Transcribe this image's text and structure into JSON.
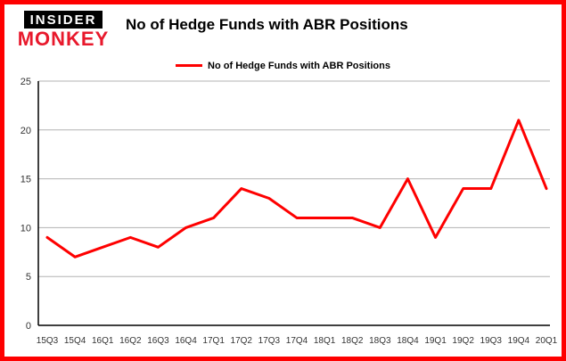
{
  "brand": {
    "line1": "INSIDER",
    "line2": "MONKEY"
  },
  "header": {
    "title": "No of Hedge Funds with ABR Positions"
  },
  "legend": {
    "label": "No of Hedge Funds with ABR Positions"
  },
  "colors": {
    "accent": "#fe0000",
    "border": "#fe0000",
    "brand_red": "#e8192c",
    "axis": "#000000",
    "grid": "#b3b3b3",
    "tick_text": "#333333"
  },
  "chart_data": {
    "type": "line",
    "title": "No of Hedge Funds with ABR Positions",
    "categories": [
      "15Q3",
      "15Q4",
      "16Q1",
      "16Q2",
      "16Q3",
      "16Q4",
      "17Q1",
      "17Q2",
      "17Q3",
      "17Q4",
      "18Q1",
      "18Q2",
      "18Q3",
      "18Q4",
      "19Q1",
      "19Q2",
      "19Q3",
      "19Q4",
      "20Q1"
    ],
    "values": [
      9,
      7,
      8,
      9,
      8,
      10,
      11,
      14,
      13,
      11,
      11,
      11,
      10,
      15,
      9,
      14,
      14,
      21,
      14
    ],
    "series_name": "No of Hedge Funds with ABR Positions",
    "xlabel": "",
    "ylabel": "",
    "ylim": [
      0,
      25
    ],
    "yticks": [
      0,
      5,
      10,
      15,
      20,
      25
    ],
    "grid": true,
    "legend_position": "top",
    "line_color": "#fe0000"
  }
}
